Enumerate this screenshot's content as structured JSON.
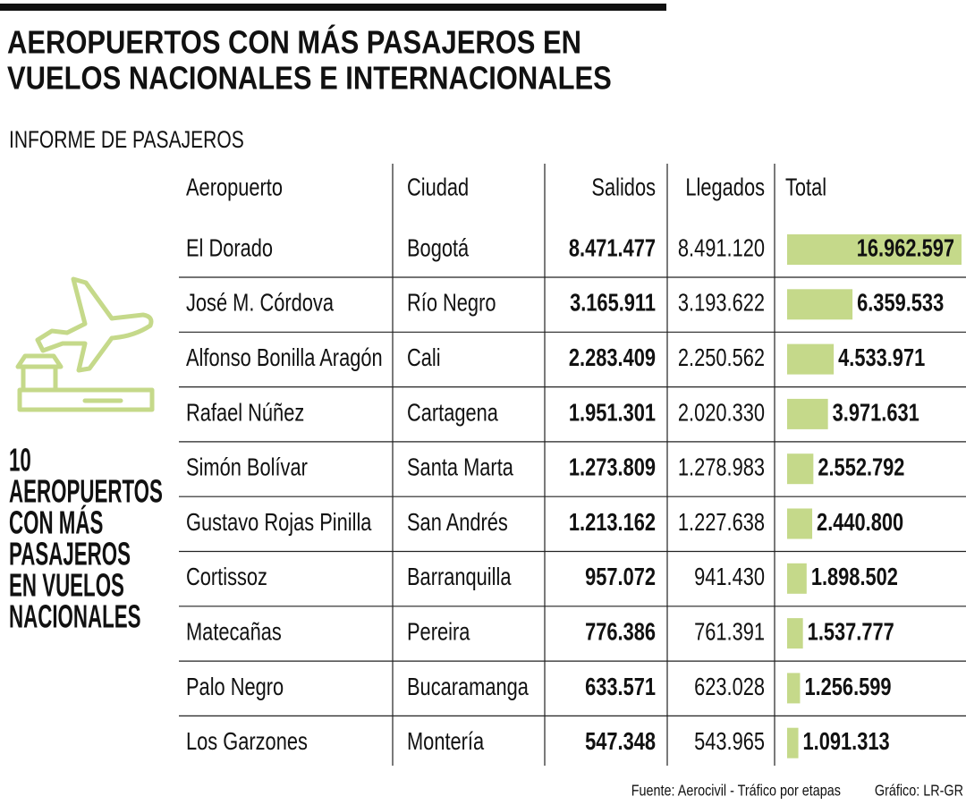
{
  "chart_data": {
    "type": "bar",
    "title": [
      "AEROPUERTOS CON MÁS PASAJEROS EN",
      "VUELOS NACIONALES E INTERNACIONALES"
    ],
    "subtitle": "INFORME DE PASAJEROS",
    "side_note": [
      "10",
      "AEROPUERTOS",
      "CON MÁS",
      "PASAJEROS",
      "EN VUELOS",
      "NACIONALES"
    ],
    "columns": [
      "Aeropuerto",
      "Ciudad",
      "Salidos",
      "Llegados",
      "Total"
    ],
    "categories": [
      "El Dorado",
      "José M. Córdova",
      "Alfonso Bonilla Aragón",
      "Rafael Núñez",
      "Simón Bolívar",
      "Gustavo Rojas Pinilla",
      "Cortissoz",
      "Matecañas",
      "Palo Negro",
      "Los Garzones"
    ],
    "cities": [
      "Bogotá",
      "Río Negro",
      "Cali",
      "Cartagena",
      "Santa Marta",
      "San Andrés",
      "Barranquilla",
      "Pereira",
      "Bucaramanga",
      "Montería"
    ],
    "salidos": [
      "8.471.477",
      "3.165.911",
      "2.283.409",
      "1.951.301",
      "1.273.809",
      "1.213.162",
      "957.072",
      "776.386",
      "633.571",
      "547.348"
    ],
    "llegados": [
      "8.491.120",
      "3.193.622",
      "2.250.562",
      "2.020.330",
      "1.278.983",
      "1.227.638",
      "941.430",
      "761.391",
      "623.028",
      "543.965"
    ],
    "values": [
      16962597,
      6359533,
      4533971,
      3971631,
      2552792,
      2440800,
      1898502,
      1537777,
      1256599,
      1091313
    ],
    "value_labels": [
      "16.962.597",
      "6.359.533",
      "4.533.971",
      "3.971.631",
      "2.552.792",
      "2.440.800",
      "1.898.502",
      "1.537.777",
      "1.256.599",
      "1.091.313"
    ],
    "color": "#c5d98a",
    "source": "Fuente: Aerocivil - Tráfico por etapas",
    "credit": "Gráfico: LR-GR"
  }
}
